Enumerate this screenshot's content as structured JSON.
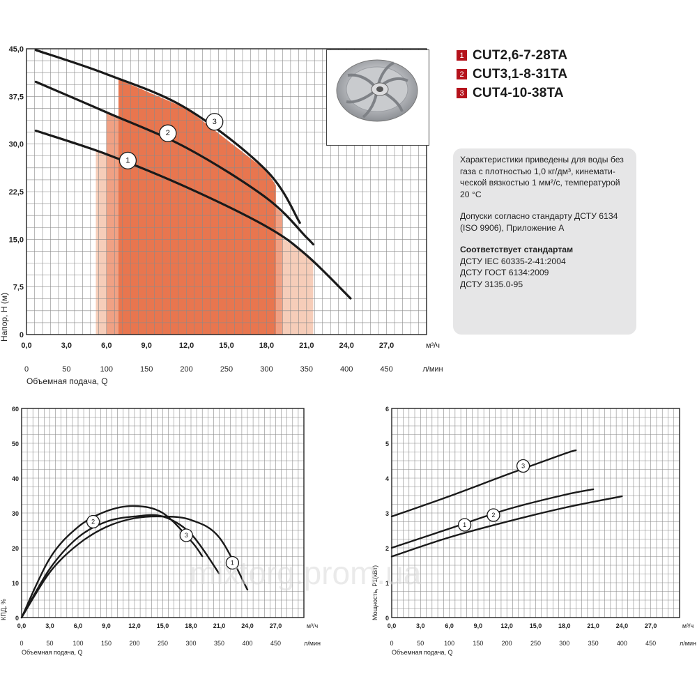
{
  "legend": [
    {
      "num": "1",
      "name": "CUT2,6-7-28TA"
    },
    {
      "num": "2",
      "name": "CUT3,1-8-31TA"
    },
    {
      "num": "3",
      "name": "CUT4-10-38TA"
    }
  ],
  "info": {
    "para1": "Характеристики приведены для воды без газа с плотностью 1,0 кг/дм³, кинемати-ческой вязкостью 1 мм²/с, температурой 20 °C",
    "para2": "Допуски согласно стандарту ДСТУ 6134 (ISO 9906), Приложение А",
    "para3_title": "Соответствует стандартам",
    "para3_lines": [
      "ДСТУ IEC 60335-2-41:2004",
      "ДСТУ ГОСТ 6134:2009",
      "ДСТУ 3135.0-95"
    ]
  },
  "watermark": "mixtorg.prom.ua",
  "colors": {
    "fill_light": "#f6cdb9",
    "fill_mid": "#f0a184",
    "fill_dark": "#e8764f",
    "badge": "#b5121b"
  },
  "chart_data": [
    {
      "id": "head",
      "type": "line",
      "ylabel": "Напор, Н (м)",
      "xlabel": "Объемная подача, Q",
      "x_unit": "м³/ч",
      "x2_unit": "л/мин",
      "xlim": [
        0,
        30
      ],
      "ylim": [
        0,
        45
      ],
      "x_ticks": [
        "0,0",
        "3,0",
        "6,0",
        "9,0",
        "12,0",
        "15,0",
        "18,0",
        "21,0",
        "24,0",
        "27,0"
      ],
      "y_ticks": [
        "0",
        "7,5",
        "15,0",
        "22,5",
        "30,0",
        "37,5",
        "45,0"
      ],
      "x2_ticks": [
        "0",
        "50",
        "100",
        "150",
        "200",
        "250",
        "300",
        "350",
        "400",
        "450"
      ],
      "work_ranges": [
        [
          5.2,
          21.5
        ],
        [
          6.0,
          19.2
        ],
        [
          6.9,
          18.7
        ]
      ],
      "series": [
        {
          "name": "1",
          "x": [
            0.7,
            6,
            12,
            18,
            21,
            24.3
          ],
          "y": [
            32.1,
            28.4,
            23.2,
            17.0,
            12.5,
            5.7
          ],
          "label_at": [
            7.6,
            27.4
          ]
        },
        {
          "name": "2",
          "x": [
            0.7,
            6,
            12,
            18,
            21,
            21.5
          ],
          "y": [
            39.8,
            35.0,
            29.4,
            21.5,
            15.3,
            14.2
          ],
          "label_at": [
            10.6,
            31.7
          ]
        },
        {
          "name": "3",
          "x": [
            0.7,
            6,
            12,
            18,
            20.5
          ],
          "y": [
            44.8,
            41.0,
            35.6,
            25.8,
            17.6
          ],
          "label_at": [
            14.1,
            33.5
          ]
        }
      ]
    },
    {
      "id": "efficiency",
      "type": "line",
      "ylabel": "КПД, %",
      "xlabel": "Объемная подача, Q",
      "x_unit": "м³/ч",
      "x2_unit": "л/мин",
      "xlim": [
        0,
        30
      ],
      "ylim": [
        0,
        60
      ],
      "x_ticks": [
        "0,0",
        "3,0",
        "6,0",
        "9,0",
        "12,0",
        "15,0",
        "18,0",
        "21,0",
        "24,0",
        "27,0"
      ],
      "y_ticks": [
        "0",
        "10",
        "20",
        "30",
        "40",
        "50",
        "60"
      ],
      "x2_ticks": [
        "0",
        "50",
        "100",
        "150",
        "200",
        "250",
        "300",
        "350",
        "400",
        "450"
      ],
      "series": [
        {
          "name": "1",
          "x": [
            0,
            3,
            6,
            9,
            12,
            15,
            18,
            21,
            24
          ],
          "y": [
            0,
            13,
            21,
            26,
            28.5,
            29,
            28,
            23,
            8
          ],
          "label_at": [
            22.4,
            15.7
          ]
        },
        {
          "name": "2",
          "x": [
            0,
            3,
            6,
            9,
            12,
            15,
            18,
            19.2
          ],
          "y": [
            0,
            17,
            26,
            30.5,
            32,
            30,
            22,
            17.6
          ],
          "label_at": [
            7.6,
            27.5
          ]
        },
        {
          "name": "3",
          "x": [
            0,
            3,
            6,
            9,
            12,
            15,
            18,
            21
          ],
          "y": [
            0,
            14,
            23,
            27.5,
            29,
            29,
            24,
            12.6
          ],
          "label_at": [
            17.5,
            23.6
          ]
        }
      ]
    },
    {
      "id": "power",
      "type": "line",
      "ylabel": "Мощность, Р1(кВт)",
      "xlabel": "Объемная подача, Q",
      "x_unit": "м³/ч",
      "x2_unit": "л/мин",
      "xlim": [
        0,
        30
      ],
      "ylim": [
        0,
        6
      ],
      "x_ticks": [
        "0,0",
        "3,0",
        "6,0",
        "9,0",
        "12,0",
        "15,0",
        "18,0",
        "21,0",
        "24,0",
        "27,0"
      ],
      "y_ticks": [
        "0",
        "1",
        "2",
        "3",
        "4",
        "5",
        "6"
      ],
      "x2_ticks": [
        "0",
        "50",
        "100",
        "150",
        "200",
        "250",
        "300",
        "350",
        "400",
        "450"
      ],
      "series": [
        {
          "name": "1",
          "x": [
            0,
            6,
            12,
            18,
            24
          ],
          "y": [
            1.75,
            2.3,
            2.75,
            3.15,
            3.48
          ],
          "label_at": [
            7.6,
            2.66
          ]
        },
        {
          "name": "2",
          "x": [
            0,
            6,
            12,
            18,
            21
          ],
          "y": [
            2.0,
            2.55,
            3.1,
            3.52,
            3.68
          ],
          "label_at": [
            10.6,
            2.94
          ]
        },
        {
          "name": "3",
          "x": [
            0,
            6,
            12,
            18,
            19.2
          ],
          "y": [
            2.9,
            3.48,
            4.1,
            4.7,
            4.8
          ],
          "label_at": [
            13.7,
            4.35
          ]
        }
      ]
    }
  ]
}
